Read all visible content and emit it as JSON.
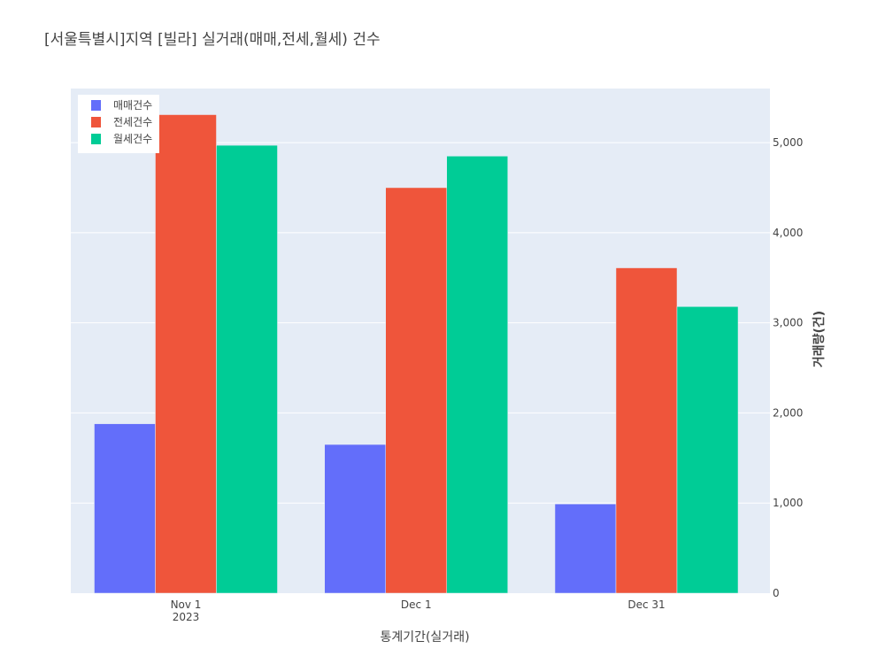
{
  "chart_data": {
    "type": "bar",
    "title": "[서울특별시]지역 [빌라] 실거래(매매,전세,월세) 건수",
    "xlabel": "통계기간(실거래)",
    "ylabel": "거래량(건)",
    "ylim": [
      0,
      5600
    ],
    "yaxis_side": "right",
    "yticks": [
      0,
      1000,
      2000,
      3000,
      4000,
      5000
    ],
    "ytick_labels": [
      "0",
      "1,000",
      "2,000",
      "3,000",
      "4,000",
      "5,000"
    ],
    "categories": [
      "2023-11-01",
      "2023-12-01",
      "2023-12-31"
    ],
    "x_tick_labels": [
      {
        "line1": "Nov 1",
        "line2": "2023"
      },
      {
        "line1": "Dec 1",
        "line2": ""
      },
      {
        "line1": "Dec 31",
        "line2": ""
      }
    ],
    "grid": true,
    "legend_position": "top-left",
    "series": [
      {
        "name": "매매건수",
        "color": "#636EFA",
        "values": [
          1880,
          1650,
          990
        ]
      },
      {
        "name": "전세건수",
        "color": "#EF553B",
        "values": [
          5310,
          4500,
          3610
        ]
      },
      {
        "name": "월세건수",
        "color": "#00CC96",
        "values": [
          4970,
          4850,
          3180
        ]
      }
    ]
  }
}
